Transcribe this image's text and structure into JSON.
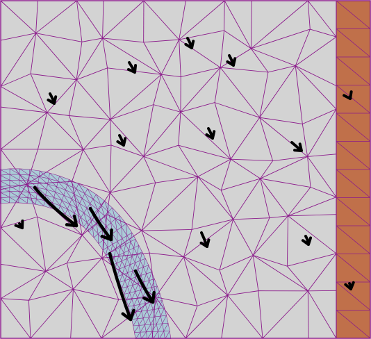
{
  "diagram": {
    "kind": "triangular finite-element mesh with velocity vectors",
    "colors": {
      "background": "#d3d3d3",
      "mesh_line": "#8b1a8b",
      "channel_fill": "#a9ccd6",
      "wall_fill": "#c0704a",
      "arrow": "#000000"
    },
    "regions": [
      "background-domain",
      "curved-channel-band",
      "right-wall-strip"
    ],
    "icons": [
      "velocity-arrow-icon"
    ]
  }
}
